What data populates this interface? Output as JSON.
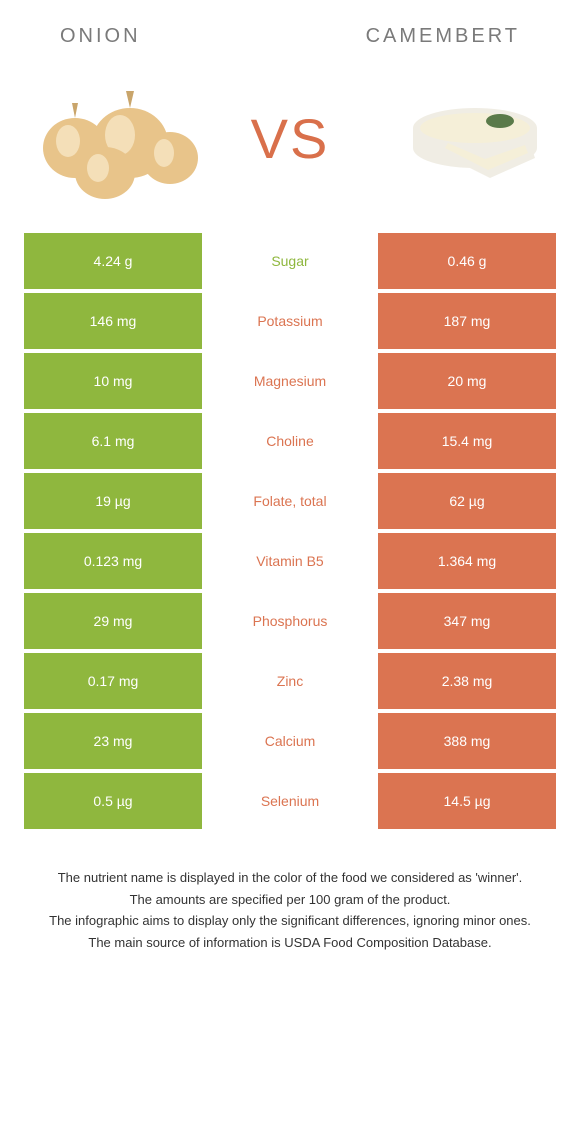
{
  "header": {
    "left_title": "ONION",
    "right_title": "CAMEMBERT",
    "vs": "VS"
  },
  "colors": {
    "onion_green": "#8fb73e",
    "camembert_orange": "#db7451",
    "nutrient_orange": "#db7451",
    "nutrient_green": "#8fb73e",
    "white": "#ffffff"
  },
  "rows": [
    {
      "left": "4.24 g",
      "nutrient": "Sugar",
      "right": "0.46 g",
      "winner": "left"
    },
    {
      "left": "146 mg",
      "nutrient": "Potassium",
      "right": "187 mg",
      "winner": "right"
    },
    {
      "left": "10 mg",
      "nutrient": "Magnesium",
      "right": "20 mg",
      "winner": "right"
    },
    {
      "left": "6.1 mg",
      "nutrient": "Choline",
      "right": "15.4 mg",
      "winner": "right"
    },
    {
      "left": "19 µg",
      "nutrient": "Folate, total",
      "right": "62 µg",
      "winner": "right"
    },
    {
      "left": "0.123 mg",
      "nutrient": "Vitamin B5",
      "right": "1.364 mg",
      "winner": "right"
    },
    {
      "left": "29 mg",
      "nutrient": "Phosphorus",
      "right": "347 mg",
      "winner": "right"
    },
    {
      "left": "0.17 mg",
      "nutrient": "Zinc",
      "right": "2.38 mg",
      "winner": "right"
    },
    {
      "left": "23 mg",
      "nutrient": "Calcium",
      "right": "388 mg",
      "winner": "right"
    },
    {
      "left": "0.5 µg",
      "nutrient": "Selenium",
      "right": "14.5 µg",
      "winner": "right"
    }
  ],
  "footnote": {
    "line1": "The nutrient name is displayed in the color of the food we considered as 'winner'.",
    "line2": "The amounts are specified per 100 gram of the product.",
    "line3": "The infographic aims to display only the significant differences, ignoring minor ones.",
    "line4": "The main source of information is USDA Food Composition Database."
  }
}
